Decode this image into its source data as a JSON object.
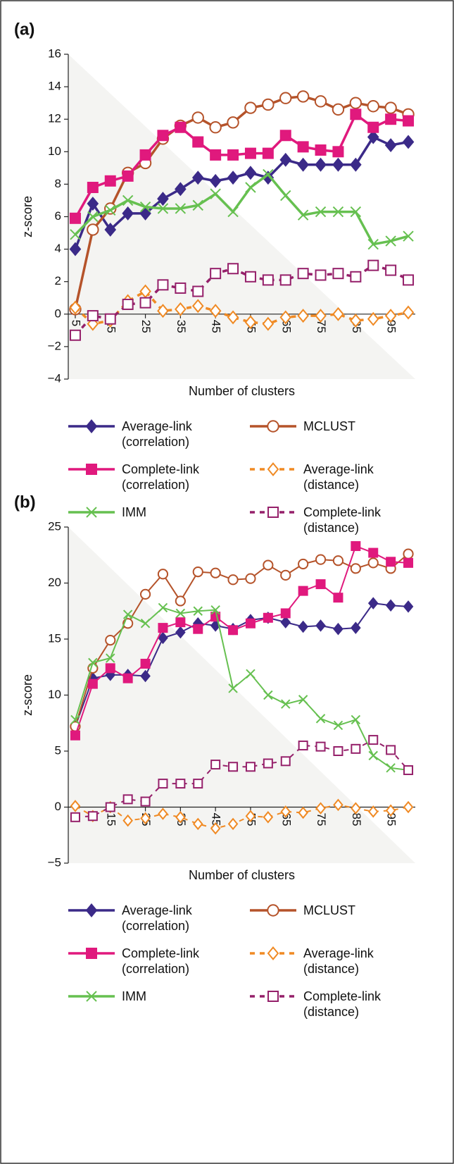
{
  "chart_data": [
    {
      "type": "line",
      "panel_label": "(a)",
      "y_label": "z-score",
      "x_label": "Number of clusters",
      "x": [
        5,
        10,
        15,
        20,
        25,
        30,
        35,
        40,
        45,
        50,
        55,
        60,
        65,
        70,
        75,
        80,
        85,
        90,
        95,
        100
      ],
      "xlim": [
        3,
        102
      ],
      "xticks": [
        5,
        15,
        25,
        35,
        45,
        55,
        65,
        75,
        85,
        95
      ],
      "ylim": [
        -4,
        16
      ],
      "yticks": [
        {
          "value": -4,
          "label": "−4"
        },
        {
          "value": -2,
          "label": "−2"
        },
        0,
        2,
        4,
        6,
        8,
        10,
        12,
        14,
        16
      ],
      "series": [
        {
          "name": "Average-link (correlation)",
          "color": "#3b2a88",
          "marker": "diamond",
          "filled": true,
          "dashed": false,
          "values": [
            4.0,
            6.8,
            5.2,
            6.2,
            6.2,
            7.1,
            7.7,
            8.4,
            8.2,
            8.4,
            8.7,
            8.4,
            9.5,
            9.2,
            9.2,
            9.2,
            9.2,
            10.9,
            10.4,
            10.6
          ]
        },
        {
          "name": "MCLUST",
          "color": "#b5532a",
          "marker": "circle",
          "filled": false,
          "dashed": false,
          "values": [
            0.3,
            5.2,
            6.5,
            8.7,
            9.3,
            10.8,
            11.6,
            12.1,
            11.5,
            11.8,
            12.7,
            12.9,
            13.3,
            13.4,
            13.1,
            12.6,
            13.0,
            12.8,
            12.7,
            12.3
          ]
        },
        {
          "name": "Complete-link (correlation)",
          "color": "#e0197d",
          "marker": "square",
          "filled": true,
          "dashed": false,
          "values": [
            5.9,
            7.8,
            8.2,
            8.5,
            9.8,
            11.0,
            11.5,
            10.6,
            9.8,
            9.8,
            9.9,
            9.9,
            11.0,
            10.3,
            10.1,
            10.0,
            12.3,
            11.5,
            12.0,
            11.9
          ]
        },
        {
          "name": "Average-link (distance)",
          "color": "#f08a24",
          "marker": "diamond",
          "filled": false,
          "dashed": true,
          "values": [
            0.4,
            -0.6,
            -0.4,
            0.8,
            1.4,
            0.2,
            0.3,
            0.5,
            0.2,
            -0.2,
            -0.5,
            -0.6,
            -0.2,
            -0.1,
            -0.1,
            0.0,
            -0.4,
            -0.3,
            -0.1,
            0.1
          ]
        },
        {
          "name": "IMM",
          "color": "#66c050",
          "marker": "x",
          "filled": false,
          "dashed": false,
          "values": [
            4.9,
            6.0,
            6.4,
            7.0,
            6.6,
            6.5,
            6.5,
            6.7,
            7.4,
            6.3,
            7.8,
            8.6,
            7.3,
            6.1,
            6.3,
            6.3,
            6.3,
            4.3,
            4.5,
            4.8
          ]
        },
        {
          "name": "Complete-link (distance)",
          "color": "#95206a",
          "marker": "square",
          "filled": false,
          "dashed": true,
          "values": [
            -1.3,
            -0.1,
            -0.3,
            0.6,
            0.7,
            1.8,
            1.6,
            1.4,
            2.5,
            2.8,
            2.3,
            2.1,
            2.1,
            2.5,
            2.4,
            2.5,
            2.3,
            3.0,
            2.7,
            2.1
          ]
        }
      ]
    },
    {
      "type": "line",
      "panel_label": "(b)",
      "y_label": "z-score",
      "x_label": "Number of clusters",
      "x": [
        5,
        10,
        15,
        20,
        25,
        30,
        35,
        40,
        45,
        50,
        55,
        60,
        65,
        70,
        75,
        80,
        85,
        90,
        95,
        100
      ],
      "xlim": [
        3,
        102
      ],
      "xticks": [
        5,
        15,
        25,
        35,
        45,
        55,
        65,
        75,
        85,
        95
      ],
      "ylim": [
        -5,
        25
      ],
      "yticks": [
        {
          "value": -5,
          "label": "−5"
        },
        0,
        5,
        10,
        15,
        20,
        25
      ],
      "series": [
        {
          "name": "Average-link (correlation)",
          "color": "#3b2a88",
          "marker": "diamond",
          "filled": true,
          "dashed": false,
          "values": [
            7.2,
            11.5,
            11.8,
            11.8,
            11.7,
            15.1,
            15.6,
            16.4,
            16.2,
            15.9,
            16.7,
            16.9,
            16.5,
            16.1,
            16.2,
            15.9,
            16.0,
            18.2,
            18.0,
            17.9
          ]
        },
        {
          "name": "MCLUST",
          "color": "#b5532a",
          "marker": "circle",
          "filled": false,
          "dashed": false,
          "values": [
            7.2,
            12.4,
            14.9,
            16.4,
            19.0,
            20.8,
            18.4,
            21.0,
            20.9,
            20.3,
            20.4,
            21.6,
            20.7,
            21.7,
            22.1,
            22.0,
            21.3,
            21.8,
            21.3,
            22.6
          ]
        },
        {
          "name": "Complete-link (correlation)",
          "color": "#e0197d",
          "marker": "square",
          "filled": true,
          "dashed": false,
          "values": [
            6.4,
            11.0,
            12.4,
            11.5,
            12.8,
            16.0,
            16.5,
            15.9,
            17.0,
            15.8,
            16.4,
            16.9,
            17.3,
            19.3,
            19.9,
            18.7,
            23.3,
            22.7,
            21.9,
            21.8
          ]
        },
        {
          "name": "Average-link (distance)",
          "color": "#f08a24",
          "marker": "diamond",
          "filled": false,
          "dashed": true,
          "values": [
            0.1,
            -0.8,
            0.0,
            -1.2,
            -1.0,
            -0.6,
            -0.9,
            -1.5,
            -1.9,
            -1.5,
            -0.8,
            -0.9,
            -0.4,
            -0.5,
            -0.1,
            0.2,
            -0.1,
            -0.4,
            -0.3,
            0.0
          ]
        },
        {
          "name": "IMM",
          "color": "#66c050",
          "marker": "x",
          "filled": false,
          "dashed": false,
          "values": [
            7.8,
            12.9,
            13.3,
            17.2,
            16.4,
            17.8,
            17.3,
            17.5,
            17.6,
            10.6,
            11.9,
            10.0,
            9.2,
            9.6,
            7.9,
            7.3,
            7.8,
            4.6,
            3.5,
            3.3
          ]
        },
        {
          "name": "Complete-link (distance)",
          "color": "#95206a",
          "marker": "square",
          "filled": false,
          "dashed": true,
          "values": [
            -0.9,
            -0.8,
            0.0,
            0.7,
            0.5,
            2.1,
            2.1,
            2.1,
            3.8,
            3.6,
            3.6,
            3.9,
            4.1,
            5.5,
            5.4,
            5.0,
            5.2,
            6.0,
            5.1,
            3.3
          ]
        }
      ]
    }
  ]
}
